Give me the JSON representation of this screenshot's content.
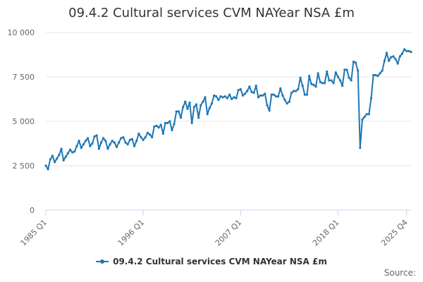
{
  "chart_data": {
    "type": "line",
    "title": "09.4.2 Cultural services CVM NAYear NSA £m",
    "xlabel": "",
    "ylabel": "",
    "ylim": [
      0,
      10000
    ],
    "y_ticks": [
      0,
      2500,
      5000,
      7500,
      10000
    ],
    "y_tick_labels": [
      "0",
      "2 500",
      "5 000",
      "7 500",
      "10 000"
    ],
    "x_tick_labels": [
      "1985 Q1",
      "1996 Q1",
      "2007 Q1",
      "2018 Q1",
      "2025 Q4"
    ],
    "x_tick_positions": [
      0,
      44,
      88,
      132,
      163
    ],
    "legend_label": "09.4.2 Cultural services CVM NAYear NSA £m",
    "legend_position": "bottom",
    "series": [
      {
        "name": "09.4.2 Cultural services CVM NAYear NSA £m",
        "color": "#1f77b4",
        "x_start": "1985 Q1",
        "values": [
          2500,
          2300,
          2850,
          3050,
          2700,
          2900,
          3100,
          3450,
          2800,
          3000,
          3200,
          3400,
          3250,
          3300,
          3600,
          3900,
          3500,
          3700,
          3900,
          4050,
          3600,
          3750,
          4150,
          4200,
          3450,
          3800,
          4050,
          3900,
          3450,
          3700,
          3900,
          3800,
          3550,
          3800,
          4050,
          4100,
          3800,
          3700,
          3950,
          4000,
          3600,
          3900,
          4300,
          4100,
          3950,
          4100,
          4350,
          4250,
          4100,
          4700,
          4750,
          4650,
          4800,
          4300,
          4900,
          4900,
          5000,
          4500,
          4850,
          5550,
          5550,
          5200,
          5800,
          6100,
          5700,
          6050,
          4900,
          5800,
          5950,
          5200,
          5900,
          6100,
          6350,
          5400,
          5750,
          6000,
          6450,
          6400,
          6200,
          6400,
          6350,
          6400,
          6300,
          6500,
          6250,
          6350,
          6300,
          6750,
          6800,
          6450,
          6550,
          6700,
          6950,
          6650,
          6600,
          7000,
          6350,
          6450,
          6450,
          6550,
          5900,
          5600,
          6500,
          6500,
          6400,
          6400,
          6850,
          6450,
          6200,
          6000,
          6100,
          6600,
          6700,
          6700,
          6800,
          7450,
          7000,
          6500,
          6500,
          7550,
          7100,
          7050,
          6950,
          7700,
          7200,
          7150,
          7150,
          7800,
          7300,
          7300,
          7150,
          7750,
          7500,
          7300,
          7000,
          7900,
          7900,
          7450,
          7300,
          8350,
          8300,
          7850,
          3500,
          5100,
          5250,
          5400,
          5400,
          6300,
          7600,
          7600,
          7550,
          7700,
          7850,
          8400,
          8850,
          8400,
          8600,
          8650,
          8500,
          8250,
          8650,
          8800,
          9050,
          8950,
          8950,
          8900
        ]
      }
    ]
  },
  "source_label": "Source:"
}
